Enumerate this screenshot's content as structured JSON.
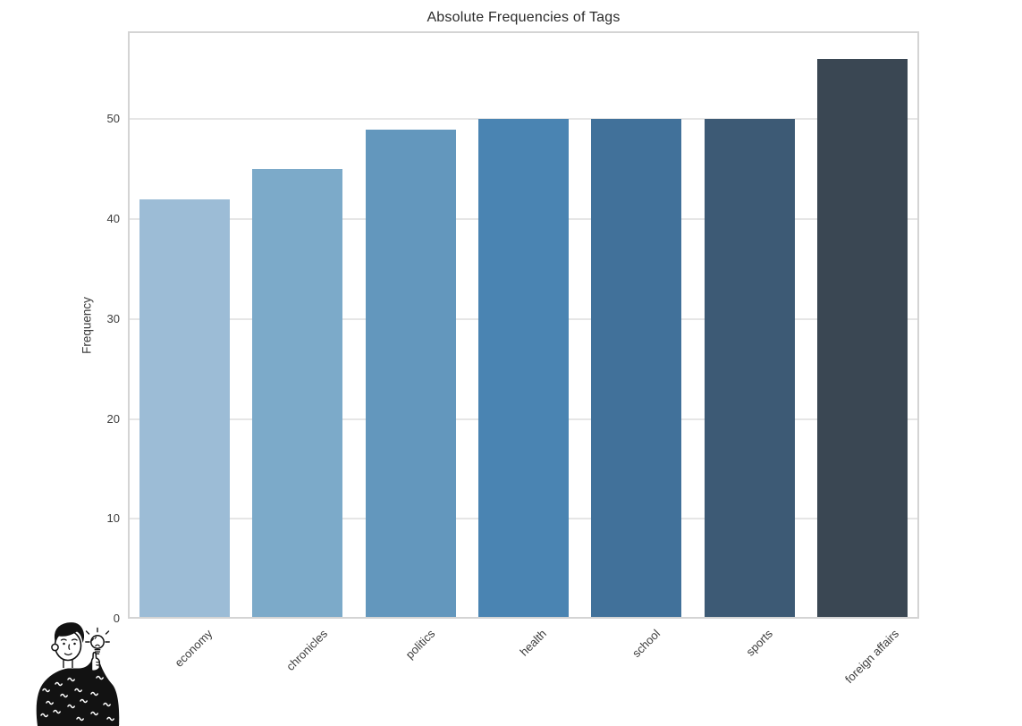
{
  "chart": {
    "title": "Absolute Frequencies of Tags",
    "ylabel": "Frequency"
  },
  "chart_data": {
    "type": "bar",
    "title": "Absolute Frequencies of Tags",
    "xlabel": "",
    "ylabel": "Frequency",
    "categories": [
      "economy",
      "chronicles",
      "politics",
      "health",
      "school",
      "sports",
      "foreign affairs"
    ],
    "values": [
      42,
      45,
      49,
      50,
      50,
      50,
      56
    ],
    "bar_colors": [
      "#9cbcd6",
      "#7caac9",
      "#6397bd",
      "#4a84b2",
      "#41719a",
      "#3d5a75",
      "#3a4753"
    ],
    "yticks": [
      0,
      10,
      20,
      30,
      40,
      50
    ],
    "ylim": [
      0,
      58.8
    ],
    "grid": true,
    "legend": false,
    "x_tick_rotation_deg": 45,
    "colors": {
      "background": "#ffffff",
      "gridline": "#e6e6e6",
      "spine": "#d4d4d4",
      "tick_text": "#3c3c3c",
      "title_text": "#2a2a2a"
    }
  },
  "icons": {
    "illustration": "person-pointing-at-lightbulb"
  }
}
